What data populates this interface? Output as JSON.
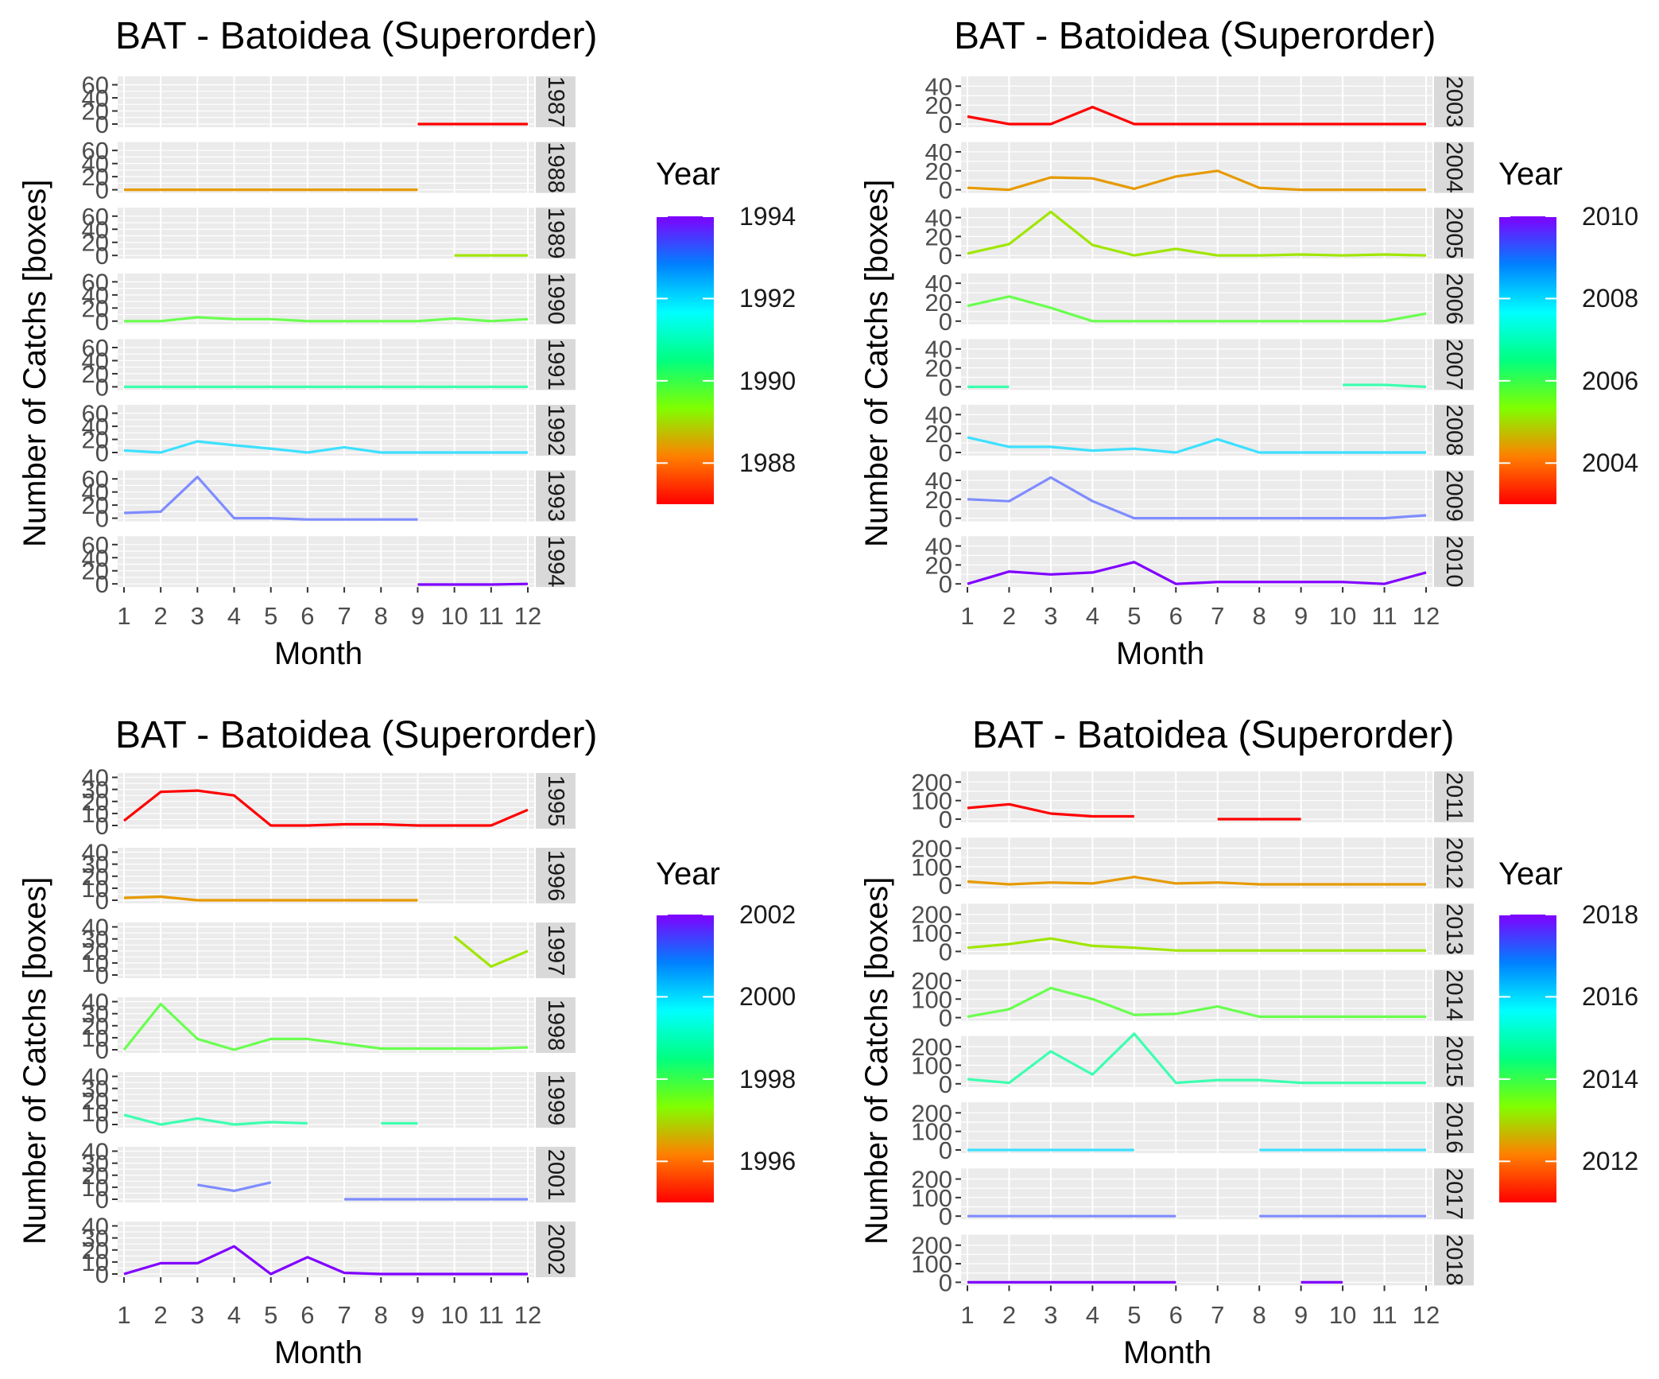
{
  "legend_title": "Year",
  "chart_data": [
    {
      "type": "line",
      "title": "BAT - Batoidea (Superorder)",
      "xlabel": "Month",
      "ylabel": "Number of Catchs [boxes]",
      "x": [
        1,
        2,
        3,
        4,
        5,
        6,
        7,
        8,
        9,
        10,
        11,
        12
      ],
      "yticks": [
        "0",
        "20",
        "40",
        "60"
      ],
      "ylim": [
        0,
        68
      ],
      "facet_labels": [
        "1987",
        "1988",
        "1989",
        "1990",
        "1991",
        "1992",
        "1993",
        "1994"
      ],
      "grid": true,
      "legend_position": "right",
      "colorbar_ticks": [
        "1994",
        "1992",
        "1990",
        "1988"
      ],
      "colorbar_range": [
        1987,
        1994
      ],
      "series": [
        {
          "name": "1987",
          "color": "#ff0000",
          "values": [
            null,
            null,
            null,
            null,
            null,
            null,
            null,
            null,
            0,
            0,
            0,
            0
          ]
        },
        {
          "name": "1988",
          "color": "#e69a00",
          "values": [
            0,
            0,
            0,
            0,
            0,
            0,
            0,
            0,
            0,
            null,
            null,
            null
          ]
        },
        {
          "name": "1989",
          "color": "#a0e600",
          "values": [
            null,
            null,
            null,
            null,
            null,
            null,
            null,
            null,
            null,
            0,
            0,
            0
          ]
        },
        {
          "name": "1990",
          "color": "#6aff50",
          "values": [
            0,
            0,
            6,
            3,
            3,
            0,
            0,
            0,
            0,
            4,
            0,
            3
          ]
        },
        {
          "name": "1991",
          "color": "#3dffb0",
          "values": [
            0,
            0,
            0,
            0,
            0,
            0,
            0,
            0,
            0,
            0,
            0,
            0
          ]
        },
        {
          "name": "1992",
          "color": "#3de0ff",
          "values": [
            3,
            0,
            17,
            11,
            6,
            0,
            8,
            0,
            0,
            0,
            0,
            0
          ]
        },
        {
          "name": "1993",
          "color": "#7f8cff",
          "values": [
            8,
            10,
            63,
            0,
            0,
            -2,
            -2,
            -2,
            -2,
            null,
            null,
            null
          ]
        },
        {
          "name": "1994",
          "color": "#8000ff",
          "values": [
            null,
            null,
            null,
            null,
            null,
            null,
            null,
            null,
            -1,
            -1,
            -1,
            0
          ]
        }
      ]
    },
    {
      "type": "line",
      "title": "BAT - Batoidea (Superorder)",
      "xlabel": "Month",
      "ylabel": "Number of Catchs [boxes]",
      "x": [
        1,
        2,
        3,
        4,
        5,
        6,
        7,
        8,
        9,
        10,
        11,
        12
      ],
      "yticks": [
        "0",
        "20",
        "40"
      ],
      "ylim": [
        0,
        47
      ],
      "facet_labels": [
        "2003",
        "2004",
        "2005",
        "2006",
        "2007",
        "2008",
        "2009",
        "2010"
      ],
      "grid": true,
      "legend_position": "right",
      "colorbar_ticks": [
        "2010",
        "2008",
        "2006",
        "2004"
      ],
      "colorbar_range": [
        2003,
        2010
      ],
      "series": [
        {
          "name": "2003",
          "color": "#ff0000",
          "values": [
            8,
            0,
            0,
            18,
            0,
            0,
            0,
            0,
            0,
            0,
            0,
            0
          ]
        },
        {
          "name": "2004",
          "color": "#e69a00",
          "values": [
            2,
            0,
            13,
            12,
            1,
            14,
            20,
            2,
            0,
            0,
            0,
            0
          ]
        },
        {
          "name": "2005",
          "color": "#a0e600",
          "values": [
            2,
            12,
            46,
            11,
            0,
            7,
            0,
            0,
            1,
            0,
            1,
            0
          ]
        },
        {
          "name": "2006",
          "color": "#6aff50",
          "values": [
            16,
            26,
            14,
            0,
            0,
            0,
            0,
            0,
            0,
            0,
            0,
            8
          ]
        },
        {
          "name": "2007",
          "color": "#3dffb0",
          "values": [
            0,
            0,
            null,
            null,
            null,
            null,
            null,
            null,
            null,
            2,
            2,
            0
          ]
        },
        {
          "name": "2008",
          "color": "#3de0ff",
          "values": [
            16,
            6,
            6,
            2,
            4,
            0,
            14,
            0,
            0,
            0,
            0,
            0
          ]
        },
        {
          "name": "2009",
          "color": "#7f8cff",
          "values": [
            20,
            18,
            43,
            18,
            0,
            0,
            0,
            0,
            0,
            0,
            0,
            3
          ]
        },
        {
          "name": "2010",
          "color": "#8000ff",
          "values": [
            0,
            13,
            10,
            12,
            23,
            0,
            2,
            2,
            2,
            2,
            0,
            12
          ]
        }
      ]
    },
    {
      "type": "line",
      "title": "BAT - Batoidea (Superorder)",
      "xlabel": "Month",
      "ylabel": "Number of Catchs [boxes]",
      "x": [
        1,
        2,
        3,
        4,
        5,
        6,
        7,
        8,
        9,
        10,
        11,
        12
      ],
      "yticks": [
        "0",
        "10",
        "20",
        "30",
        "40"
      ],
      "ylim": [
        0,
        41
      ],
      "facet_labels": [
        "1995",
        "1996",
        "1997",
        "1998",
        "1999",
        "2001",
        "2002"
      ],
      "grid": true,
      "legend_position": "right",
      "colorbar_ticks": [
        "2002",
        "2000",
        "1998",
        "1996"
      ],
      "colorbar_range": [
        1995,
        2002
      ],
      "series": [
        {
          "name": "1995",
          "color": "#ff0000",
          "values": [
            4,
            28,
            29,
            25,
            0,
            0,
            1,
            1,
            0,
            0,
            0,
            13
          ]
        },
        {
          "name": "1996",
          "color": "#e69a00",
          "values": [
            2,
            3,
            0,
            0,
            0,
            0,
            0,
            0,
            0,
            null,
            null,
            null
          ]
        },
        {
          "name": "1997",
          "color": "#a0e600",
          "values": [
            null,
            null,
            null,
            null,
            null,
            null,
            null,
            null,
            null,
            32,
            7,
            20
          ]
        },
        {
          "name": "1998",
          "color": "#6aff50",
          "values": [
            0,
            38,
            9,
            0,
            9,
            9,
            5,
            1,
            1,
            1,
            1,
            2
          ]
        },
        {
          "name": "1999",
          "color": "#3dffb0",
          "values": [
            8,
            0,
            5,
            0,
            2,
            1,
            null,
            1,
            1,
            null,
            null,
            null
          ]
        },
        {
          "name": "2001",
          "color": "#7f8cff",
          "values": [
            null,
            null,
            12,
            7,
            14,
            null,
            0,
            0,
            0,
            0,
            0,
            0
          ]
        },
        {
          "name": "2002",
          "color": "#8000ff",
          "values": [
            0,
            9,
            9,
            23,
            0,
            14,
            1,
            0,
            0,
            0,
            0,
            0
          ]
        }
      ]
    },
    {
      "type": "line",
      "title": "BAT - Batoidea (Superorder)",
      "xlabel": "Month",
      "ylabel": "Number of Catchs [boxes]",
      "x": [
        1,
        2,
        3,
        4,
        5,
        6,
        7,
        8,
        9,
        10,
        11,
        12
      ],
      "yticks": [
        "0",
        "100",
        "200"
      ],
      "ylim": [
        0,
        240
      ],
      "facet_labels": [
        "2011",
        "2012",
        "2013",
        "2014",
        "2015",
        "2016",
        "2017",
        "2018"
      ],
      "grid": true,
      "legend_position": "right",
      "colorbar_ticks": [
        "2018",
        "2016",
        "2014",
        "2012"
      ],
      "colorbar_range": [
        2011,
        2018
      ],
      "series": [
        {
          "name": "2011",
          "color": "#ff0000",
          "values": [
            60,
            80,
            30,
            15,
            15,
            null,
            0,
            0,
            0,
            null,
            null,
            null
          ]
        },
        {
          "name": "2012",
          "color": "#e69a00",
          "values": [
            20,
            5,
            15,
            10,
            45,
            10,
            15,
            5,
            5,
            5,
            5,
            5
          ]
        },
        {
          "name": "2013",
          "color": "#a0e600",
          "values": [
            20,
            40,
            70,
            30,
            20,
            5,
            5,
            5,
            5,
            5,
            5,
            5
          ]
        },
        {
          "name": "2014",
          "color": "#6aff50",
          "values": [
            5,
            45,
            160,
            100,
            15,
            20,
            60,
            5,
            5,
            5,
            5,
            5
          ]
        },
        {
          "name": "2015",
          "color": "#3dffb0",
          "values": [
            25,
            5,
            175,
            50,
            270,
            5,
            20,
            20,
            5,
            5,
            5,
            5
          ]
        },
        {
          "name": "2016",
          "color": "#3de0ff",
          "values": [
            0,
            0,
            0,
            0,
            0,
            null,
            null,
            0,
            0,
            0,
            0,
            0
          ]
        },
        {
          "name": "2017",
          "color": "#7f8cff",
          "values": [
            0,
            0,
            0,
            0,
            0,
            0,
            null,
            0,
            0,
            0,
            0,
            0
          ]
        },
        {
          "name": "2018",
          "color": "#8000ff",
          "values": [
            0,
            0,
            0,
            0,
            0,
            0,
            null,
            null,
            0,
            0,
            null,
            null
          ]
        }
      ]
    }
  ]
}
